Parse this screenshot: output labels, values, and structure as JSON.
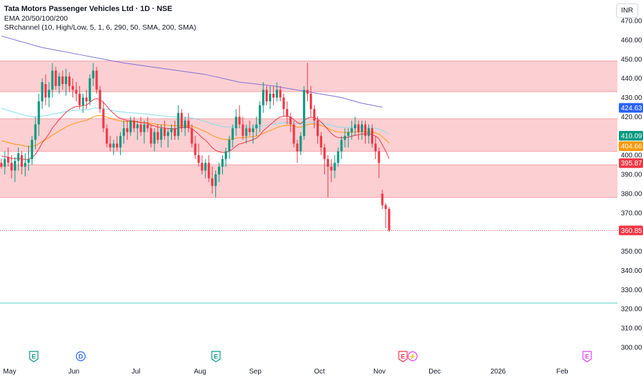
{
  "header": {
    "title": "Tata Motors Passenger Vehicles Ltd · 1D · NSE",
    "indicators": [
      "EMA 20/50/100/200",
      "SRchannel (10, High/Low, 5, 1, 6, 290, 50, SMA, 200, SMA)"
    ],
    "currency": "INR"
  },
  "colors": {
    "up": "#089981",
    "down": "#f23645",
    "ema20": "#f23645",
    "ema50": "#ff9800",
    "ema100": "#80deea",
    "ema200": "#7e6fd6",
    "channel_fill": "#fcc7ca",
    "support": "#4dd0c4",
    "event_earnings": "#089981",
    "event_dividend": "#2962ff",
    "event_split": "#e040fb"
  },
  "chart_data": {
    "type": "candlestick",
    "y_axis": {
      "min": 300,
      "max": 470,
      "ticks": [
        300,
        310,
        320,
        330,
        340,
        350,
        360,
        370,
        380,
        390,
        400,
        410,
        420,
        430,
        440,
        450,
        460,
        470
      ]
    },
    "x_axis": {
      "labels": [
        "May",
        "Jun",
        "Jul",
        "Aug",
        "Sep",
        "Oct",
        "Nov",
        "Dec",
        "2026",
        "Feb"
      ]
    },
    "price_labels": [
      {
        "value": 424.63,
        "label": "424.63",
        "color": "#2962ff"
      },
      {
        "value": 410.09,
        "label": "410.09",
        "color": "#089981"
      },
      {
        "value": 404.66,
        "label": "404.66",
        "color": "#ff9800"
      },
      {
        "value": 395.87,
        "label": "395.87",
        "color": "#f23645"
      },
      {
        "value": 360.85,
        "label": "360.85",
        "color": "#f23645"
      }
    ],
    "channels": [
      [
        433,
        449
      ],
      [
        402,
        419
      ],
      [
        378,
        395
      ]
    ],
    "support_level": 323,
    "last_price": 360.85,
    "ohlc": [
      [
        396,
        398,
        393,
        394
      ],
      [
        394,
        402,
        390,
        398
      ],
      [
        399,
        404,
        394,
        396
      ],
      [
        396,
        400,
        388,
        392
      ],
      [
        392,
        399,
        386,
        397
      ],
      [
        397,
        404,
        392,
        401
      ],
      [
        400,
        402,
        390,
        394
      ],
      [
        394,
        401,
        389,
        396
      ],
      [
        396,
        405,
        392,
        398
      ],
      [
        398,
        410,
        395,
        408
      ],
      [
        408,
        420,
        403,
        416
      ],
      [
        416,
        432,
        410,
        428
      ],
      [
        428,
        440,
        424,
        438
      ],
      [
        437,
        442,
        426,
        430
      ],
      [
        430,
        438,
        425,
        434
      ],
      [
        434,
        448,
        430,
        444
      ],
      [
        444,
        446,
        434,
        436
      ],
      [
        436,
        443,
        432,
        441
      ],
      [
        441,
        444,
        434,
        437
      ],
      [
        437,
        445,
        431,
        441
      ],
      [
        441,
        443,
        433,
        436
      ],
      [
        436,
        440,
        430,
        434
      ],
      [
        434,
        438,
        428,
        432
      ],
      [
        432,
        436,
        424,
        426
      ],
      [
        426,
        432,
        422,
        430
      ],
      [
        430,
        434,
        424,
        428
      ],
      [
        428,
        442,
        426,
        440
      ],
      [
        440,
        448,
        436,
        444
      ],
      [
        444,
        446,
        432,
        434
      ],
      [
        434,
        436,
        422,
        424
      ],
      [
        424,
        428,
        412,
        414
      ],
      [
        414,
        416,
        404,
        406
      ],
      [
        406,
        410,
        402,
        404
      ],
      [
        404,
        408,
        400,
        406
      ],
      [
        406,
        410,
        402,
        404
      ],
      [
        404,
        412,
        400,
        410
      ],
      [
        410,
        418,
        406,
        414
      ],
      [
        414,
        418,
        408,
        412
      ],
      [
        412,
        420,
        410,
        418
      ],
      [
        418,
        420,
        412,
        414
      ],
      [
        414,
        418,
        408,
        416
      ],
      [
        416,
        420,
        410,
        412
      ],
      [
        412,
        418,
        406,
        416
      ],
      [
        416,
        420,
        412,
        414
      ],
      [
        414,
        416,
        404,
        406
      ],
      [
        406,
        414,
        402,
        412
      ],
      [
        412,
        416,
        406,
        408
      ],
      [
        408,
        416,
        404,
        414
      ],
      [
        414,
        418,
        408,
        410
      ],
      [
        410,
        414,
        404,
        412
      ],
      [
        412,
        416,
        408,
        414
      ],
      [
        414,
        418,
        408,
        410
      ],
      [
        410,
        426,
        408,
        422
      ],
      [
        422,
        424,
        412,
        414
      ],
      [
        414,
        420,
        410,
        418
      ],
      [
        418,
        422,
        412,
        414
      ],
      [
        414,
        416,
        404,
        406
      ],
      [
        406,
        410,
        398,
        400
      ],
      [
        400,
        406,
        394,
        396
      ],
      [
        396,
        400,
        390,
        392
      ],
      [
        392,
        398,
        388,
        396
      ],
      [
        396,
        400,
        386,
        388
      ],
      [
        388,
        394,
        380,
        384
      ],
      [
        384,
        392,
        378,
        390
      ],
      [
        390,
        396,
        386,
        394
      ],
      [
        394,
        400,
        390,
        398
      ],
      [
        398,
        404,
        394,
        402
      ],
      [
        402,
        410,
        398,
        408
      ],
      [
        408,
        416,
        404,
        414
      ],
      [
        414,
        424,
        410,
        420
      ],
      [
        420,
        426,
        414,
        416
      ],
      [
        416,
        420,
        408,
        410
      ],
      [
        410,
        416,
        406,
        414
      ],
      [
        414,
        418,
        410,
        412
      ],
      [
        412,
        416,
        406,
        414
      ],
      [
        414,
        420,
        410,
        416
      ],
      [
        416,
        428,
        412,
        426
      ],
      [
        426,
        438,
        422,
        434
      ],
      [
        434,
        436,
        426,
        428
      ],
      [
        428,
        436,
        424,
        432
      ],
      [
        432,
        436,
        426,
        430
      ],
      [
        430,
        438,
        428,
        434
      ],
      [
        434,
        436,
        428,
        430
      ],
      [
        430,
        432,
        420,
        424
      ],
      [
        424,
        428,
        416,
        420
      ],
      [
        420,
        422,
        412,
        416
      ],
      [
        416,
        418,
        404,
        406
      ],
      [
        406,
        408,
        396,
        402
      ],
      [
        402,
        412,
        400,
        410
      ],
      [
        410,
        436,
        408,
        434
      ],
      [
        434,
        448,
        428,
        432
      ],
      [
        432,
        436,
        420,
        424
      ],
      [
        424,
        426,
        414,
        418
      ],
      [
        418,
        420,
        406,
        410
      ],
      [
        410,
        412,
        400,
        404
      ],
      [
        404,
        406,
        390,
        398
      ],
      [
        398,
        400,
        378,
        394
      ],
      [
        394,
        398,
        386,
        392
      ],
      [
        392,
        400,
        388,
        396
      ],
      [
        396,
        404,
        394,
        402
      ],
      [
        402,
        410,
        398,
        408
      ],
      [
        408,
        414,
        404,
        410
      ],
      [
        410,
        414,
        404,
        412
      ],
      [
        412,
        418,
        408,
        414
      ],
      [
        414,
        420,
        410,
        416
      ],
      [
        416,
        418,
        408,
        412
      ],
      [
        412,
        418,
        408,
        416
      ],
      [
        416,
        418,
        406,
        410
      ],
      [
        410,
        416,
        406,
        414
      ],
      [
        414,
        416,
        404,
        406
      ],
      [
        406,
        410,
        398,
        402
      ],
      [
        402,
        404,
        388,
        396
      ],
      [
        380,
        382,
        372,
        374
      ],
      [
        374,
        375,
        362,
        372
      ],
      [
        372,
        373,
        360,
        360.85
      ]
    ],
    "ema200": [
      [
        0,
        462
      ],
      [
        30,
        456
      ],
      [
        60,
        452
      ],
      [
        90,
        448
      ],
      [
        120,
        445
      ],
      [
        150,
        442
      ],
      [
        175,
        438
      ],
      [
        200,
        436
      ],
      [
        225,
        433
      ],
      [
        250,
        430
      ],
      [
        265,
        427
      ],
      [
        280,
        425
      ]
    ]
  },
  "events": [
    {
      "type": "earnings",
      "label": "E",
      "x_label": "May"
    },
    {
      "type": "dividend",
      "label": "D",
      "x_label": "Jun"
    },
    {
      "type": "earnings",
      "label": "E",
      "x_label": "Aug"
    },
    {
      "type": "earnings",
      "label": "E",
      "x_label": "Nov"
    },
    {
      "type": "split",
      "label": "⚡",
      "x_label": "Nov"
    },
    {
      "type": "earnings",
      "label": "E",
      "x_label": "Feb"
    }
  ]
}
